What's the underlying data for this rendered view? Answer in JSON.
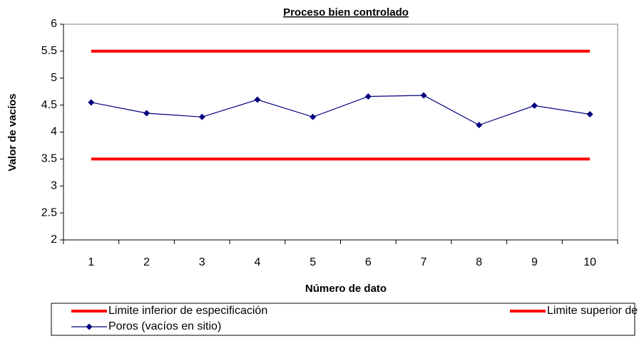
{
  "chart_data": {
    "type": "line",
    "title": "Proceso bien controlado",
    "x_label": "Número de dato",
    "y_label": "Valor de vacíos",
    "categories": [
      1,
      2,
      3,
      4,
      5,
      6,
      7,
      8,
      9,
      10
    ],
    "series": [
      {
        "name": "Limite inferior de especificación",
        "color": "#ff0000",
        "values": [
          3.5,
          3.5,
          3.5,
          3.5,
          3.5,
          3.5,
          3.5,
          3.5,
          3.5,
          3.5
        ]
      },
      {
        "name": "Limite superior de especificación",
        "color": "#ff0000",
        "values": [
          5.5,
          5.5,
          5.5,
          5.5,
          5.5,
          5.5,
          5.5,
          5.5,
          5.5,
          5.5
        ]
      },
      {
        "name": "Poros (vacíos en sitio)",
        "color": "#000080",
        "values": [
          4.55,
          4.35,
          4.28,
          4.6,
          4.28,
          4.66,
          4.68,
          4.13,
          4.49,
          4.33
        ]
      }
    ],
    "ylim": [
      2,
      6
    ],
    "yticks": [
      2,
      2.5,
      3,
      3.5,
      4,
      4.5,
      5,
      5.5,
      6
    ],
    "grid": false
  }
}
